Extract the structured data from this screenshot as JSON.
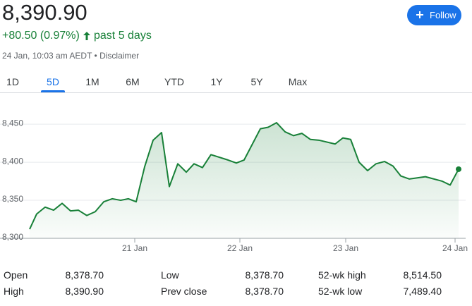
{
  "header": {
    "price": "8,390.90",
    "change": "+80.50 (0.97%)",
    "period": "past 5 days",
    "timestamp": "24 Jan, 10:03 am AEDT •",
    "disclaimer": "Disclaimer",
    "follow": "Follow"
  },
  "tabs": [
    "1D",
    "5D",
    "1M",
    "6M",
    "YTD",
    "1Y",
    "5Y",
    "Max"
  ],
  "active_tab": 1,
  "chart": {
    "type": "line",
    "color": "#188038",
    "x": [
      2,
      12,
      24,
      36,
      48,
      60,
      71,
      83,
      95,
      107,
      119,
      131,
      142,
      153,
      165,
      177,
      189,
      200,
      212,
      224,
      235,
      247,
      259,
      283,
      295,
      306,
      329,
      340,
      352,
      364,
      376,
      388,
      400,
      412,
      435,
      446,
      457,
      469,
      481,
      493,
      505,
      517,
      528,
      540,
      563,
      587,
      598,
      610
    ],
    "values": [
      8312,
      8332,
      8341,
      8337,
      8346,
      8336,
      8337,
      8330,
      8335,
      8348,
      8352,
      8350,
      8352,
      8348,
      8394,
      8429,
      8439,
      8368,
      8398,
      8387,
      8398,
      8393,
      8410,
      8403,
      8399,
      8403,
      8444,
      8446,
      8452,
      8440,
      8435,
      8438,
      8430,
      8429,
      8424,
      8432,
      8430,
      8400,
      8389,
      8398,
      8401,
      8395,
      8382,
      8378,
      8381,
      8375,
      8370,
      8390.9
    ],
    "xlim": [
      0,
      612
    ],
    "ylim": [
      8300,
      8465
    ],
    "yticks": [
      {
        "value": 8300,
        "label": "8,300"
      },
      {
        "value": 8350,
        "label": "8,350"
      },
      {
        "value": 8400,
        "label": "8,400"
      },
      {
        "value": 8450,
        "label": "8,450"
      }
    ],
    "xticks": [
      {
        "value": 151,
        "label": "21 Jan"
      },
      {
        "value": 300,
        "label": "22 Jan"
      },
      {
        "value": 450,
        "label": "23 Jan"
      },
      {
        "value": 605,
        "label": "24 Jan"
      }
    ],
    "grid": true
  },
  "stats": [
    [
      [
        "Open",
        "8,378.70"
      ],
      [
        "Low",
        "8,378.70"
      ],
      [
        "52-wk high",
        "8,514.50"
      ]
    ],
    [
      [
        "High",
        "8,390.90"
      ],
      [
        "Prev close",
        "8,378.70"
      ],
      [
        "52-wk low",
        "7,489.40"
      ]
    ]
  ]
}
